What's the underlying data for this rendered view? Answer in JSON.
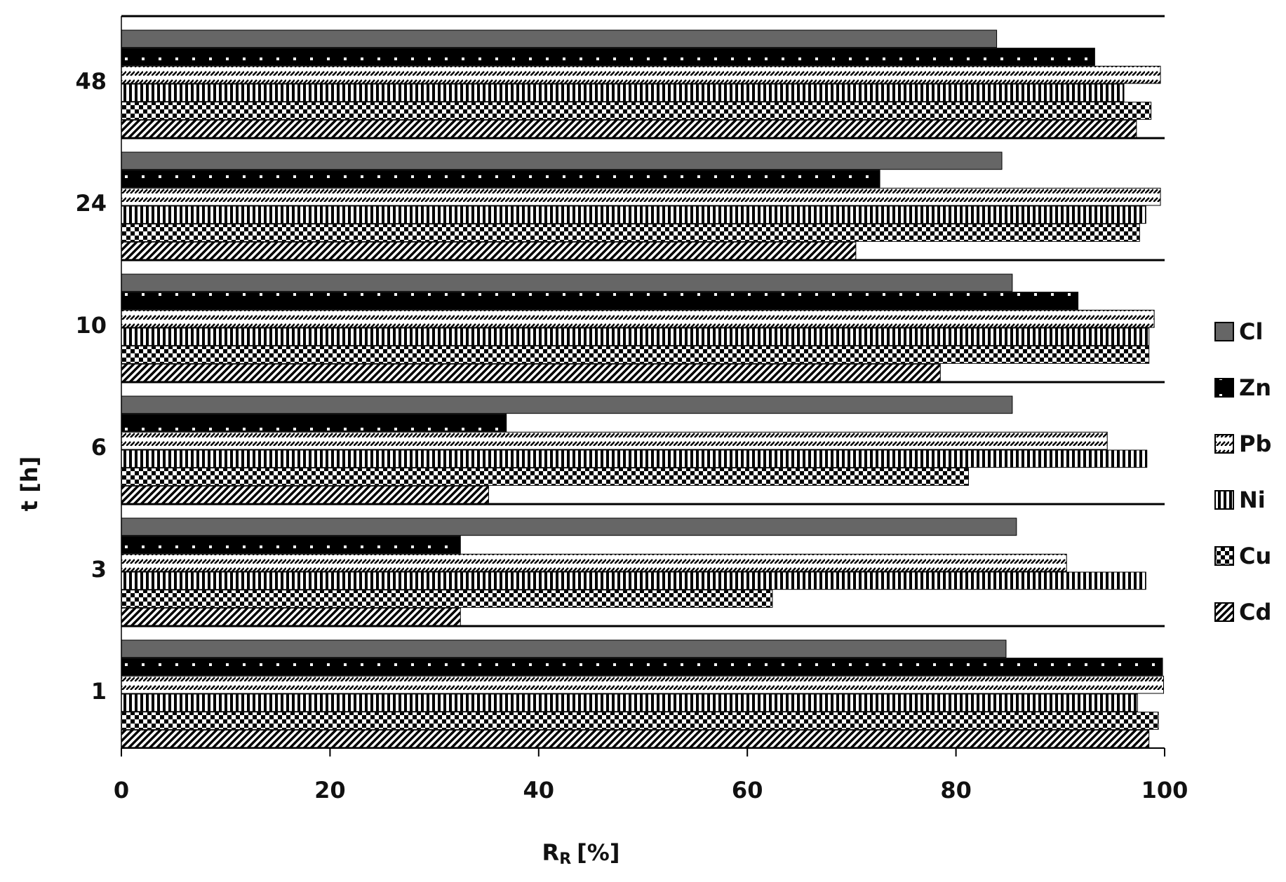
{
  "chart_data": {
    "type": "hbar",
    "xlabel": "R",
    "xlabel_sub": "R",
    "xlabel_unit": "[%]",
    "ylabel": "t [h]",
    "categories": [
      "1",
      "3",
      "6",
      "10",
      "24",
      "48"
    ],
    "xlim": [
      0,
      100
    ],
    "xticks": [
      0,
      20,
      40,
      60,
      80,
      100
    ],
    "legend": "right",
    "series": [
      {
        "name": "Cl",
        "color": "#666666",
        "pattern": "solid",
        "values": [
          84.8,
          85.8,
          85.4,
          85.4,
          84.4,
          83.9
        ]
      },
      {
        "name": "Zn",
        "color": "#000000",
        "pattern": "dots",
        "values": [
          99.8,
          32.5,
          36.9,
          91.7,
          72.7,
          93.3
        ]
      },
      {
        "name": "Pb",
        "color": "#000000",
        "pattern": "diagonal-dash",
        "values": [
          99.9,
          90.6,
          94.5,
          99.0,
          99.6,
          99.6
        ]
      },
      {
        "name": "Ni",
        "color": "#000000",
        "pattern": "vertical",
        "values": [
          97.4,
          98.2,
          98.3,
          98.5,
          98.2,
          96.1
        ]
      },
      {
        "name": "Cu",
        "color": "#000000",
        "pattern": "checker",
        "values": [
          99.4,
          62.4,
          81.2,
          98.5,
          97.6,
          98.7
        ]
      },
      {
        "name": "Cd",
        "color": "#000000",
        "pattern": "diagonal",
        "values": [
          98.5,
          32.5,
          35.2,
          78.5,
          70.4,
          97.3
        ]
      }
    ]
  }
}
